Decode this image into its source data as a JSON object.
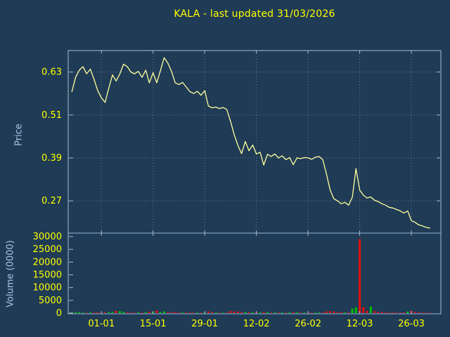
{
  "title": "KALA - last updated 31/03/2026",
  "colors": {
    "background": "#1f3b56",
    "title": "#ffff00",
    "tick_label": "#ffff00",
    "axis_label": "#a9c6e4",
    "frame": "#a9bccb",
    "panel_line": "#8fb4d9",
    "grid": "#9a9a9a",
    "price_line": "#ffff9e",
    "vol_up": "#00c000",
    "vol_down": "#e01010"
  },
  "chart_data": [
    {
      "type": "line",
      "title": "KALA - last updated 31/03/2026",
      "ylabel": "Price",
      "x_start_day": 1,
      "xlim": [
        0,
        101
      ],
      "ylim": [
        0.18,
        0.69
      ],
      "x_tick_days": [
        9,
        23,
        37,
        51,
        65,
        79,
        93
      ],
      "x_tick_labels": [
        "01-01",
        "15-01",
        "29-01",
        "12-02",
        "26-02",
        "12-03",
        "26-03"
      ],
      "y_ticks": [
        0.27,
        0.39,
        0.51,
        0.63
      ],
      "y_tick_labels": [
        "0.27",
        "0.39",
        "0.51",
        "0.63"
      ],
      "grid": true,
      "legend": "none",
      "series": [
        {
          "name": "KALA price",
          "values": [
            0.575,
            0.615,
            0.635,
            0.645,
            0.625,
            0.638,
            0.61,
            0.578,
            0.558,
            0.545,
            0.585,
            0.622,
            0.605,
            0.625,
            0.652,
            0.645,
            0.63,
            0.625,
            0.632,
            0.615,
            0.635,
            0.6,
            0.628,
            0.6,
            0.634,
            0.67,
            0.655,
            0.632,
            0.6,
            0.595,
            0.601,
            0.588,
            0.575,
            0.57,
            0.576,
            0.565,
            0.578,
            0.535,
            0.53,
            0.532,
            0.528,
            0.531,
            0.525,
            0.492,
            0.455,
            0.425,
            0.402,
            0.436,
            0.41,
            0.426,
            0.401,
            0.406,
            0.37,
            0.4,
            0.394,
            0.401,
            0.39,
            0.396,
            0.385,
            0.391,
            0.371,
            0.39,
            0.388,
            0.391,
            0.39,
            0.386,
            0.392,
            0.394,
            0.385,
            0.345,
            0.3,
            0.276,
            0.27,
            0.262,
            0.266,
            0.258,
            0.28,
            0.36,
            0.3,
            0.286,
            0.278,
            0.281,
            0.272,
            0.268,
            0.262,
            0.258,
            0.252,
            0.25,
            0.246,
            0.242,
            0.236,
            0.242,
            0.215,
            0.21,
            0.203,
            0.2,
            0.196,
            0.194
          ]
        }
      ]
    },
    {
      "type": "bar",
      "ylabel": "Volume (0000)",
      "ylim": [
        0,
        30000
      ],
      "y_ticks": [
        0,
        5000,
        10000,
        15000,
        20000,
        25000,
        30000
      ],
      "y_tick_labels": [
        "0",
        "5000",
        "10000",
        "15000",
        "20000",
        "25000",
        "30000"
      ],
      "grid": false,
      "values": [
        300,
        450,
        380,
        250,
        200,
        320,
        280,
        350,
        240,
        300,
        420,
        380,
        900,
        800,
        500,
        300,
        260,
        220,
        310,
        280,
        350,
        600,
        500,
        1100,
        450,
        700,
        400,
        300,
        500,
        260,
        240,
        300,
        280,
        220,
        260,
        240,
        300,
        700,
        400,
        260,
        240,
        220,
        260,
        800,
        700,
        600,
        500,
        420,
        380,
        340,
        400,
        300,
        500,
        380,
        260,
        300,
        240,
        260,
        220,
        280,
        400,
        300,
        240,
        220,
        260,
        240,
        220,
        260,
        300,
        700,
        800,
        600,
        400,
        350,
        300,
        320,
        1800,
        2200,
        29000,
        2400,
        900,
        2600,
        800,
        500,
        400,
        360,
        300,
        280,
        260,
        240,
        300,
        600,
        900,
        400,
        300,
        260,
        220,
        200
      ]
    }
  ]
}
